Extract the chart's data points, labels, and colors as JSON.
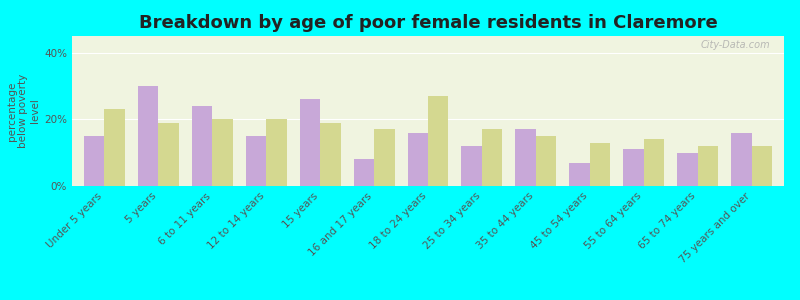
{
  "title": "Breakdown by age of poor female residents in Claremore",
  "ylabel": "percentage\nbelow poverty\nlevel",
  "categories": [
    "Under 5 years",
    "5 years",
    "6 to 11 years",
    "12 to 14 years",
    "15 years",
    "16 and 17 years",
    "18 to 24 years",
    "25 to 34 years",
    "35 to 44 years",
    "45 to 54 years",
    "55 to 64 years",
    "65 to 74 years",
    "75 years and over"
  ],
  "claremore": [
    15,
    30,
    24,
    15,
    26,
    8,
    16,
    12,
    17,
    7,
    11,
    10,
    16
  ],
  "oklahoma": [
    23,
    19,
    20,
    20,
    19,
    17,
    27,
    17,
    15,
    13,
    14,
    12,
    12
  ],
  "claremore_color": "#c8a8d8",
  "oklahoma_color": "#d4d890",
  "background_color": "#00ffff",
  "plot_bg": "#f0f4e0",
  "ylim": [
    0,
    45
  ],
  "yticks": [
    0,
    20,
    40
  ],
  "ytick_labels": [
    "0%",
    "20%",
    "40%"
  ],
  "watermark": "City-Data.com",
  "bar_width": 0.38,
  "title_fontsize": 13,
  "axis_fontsize": 7.5
}
